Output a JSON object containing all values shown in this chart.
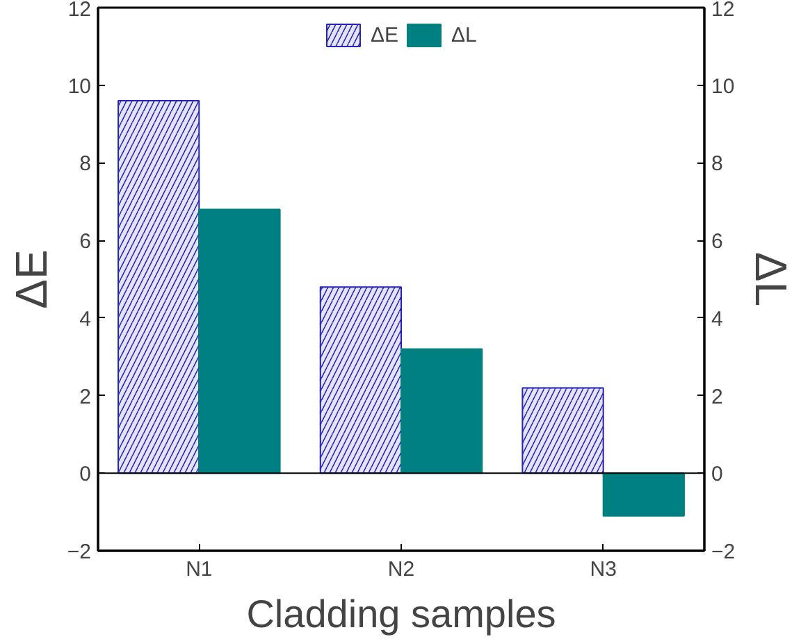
{
  "chart_data": {
    "type": "bar",
    "xlabel": "Cladding samples",
    "ylabel": "ΔE",
    "y2label": "ΔL",
    "categories": [
      "N1",
      "N2",
      "N3"
    ],
    "series": [
      {
        "name": "ΔE",
        "color": "#2323b4",
        "values": [
          9.6,
          4.8,
          2.2
        ]
      },
      {
        "name": "ΔL",
        "color": "#008080",
        "values": [
          6.8,
          3.2,
          -1.1
        ],
        "axis": "y2"
      }
    ],
    "ylim": [
      -2,
      12
    ],
    "yticks": [
      -2,
      0,
      2,
      4,
      6,
      8,
      10,
      12
    ],
    "y2lim": [
      -2,
      12
    ],
    "y2ticks": [
      -2,
      0,
      2,
      4,
      6,
      8,
      10,
      12
    ],
    "ref_lines": [
      {
        "axis": "y",
        "value": 0,
        "color": "#000000"
      }
    ],
    "legend": "top",
    "grid": false
  }
}
